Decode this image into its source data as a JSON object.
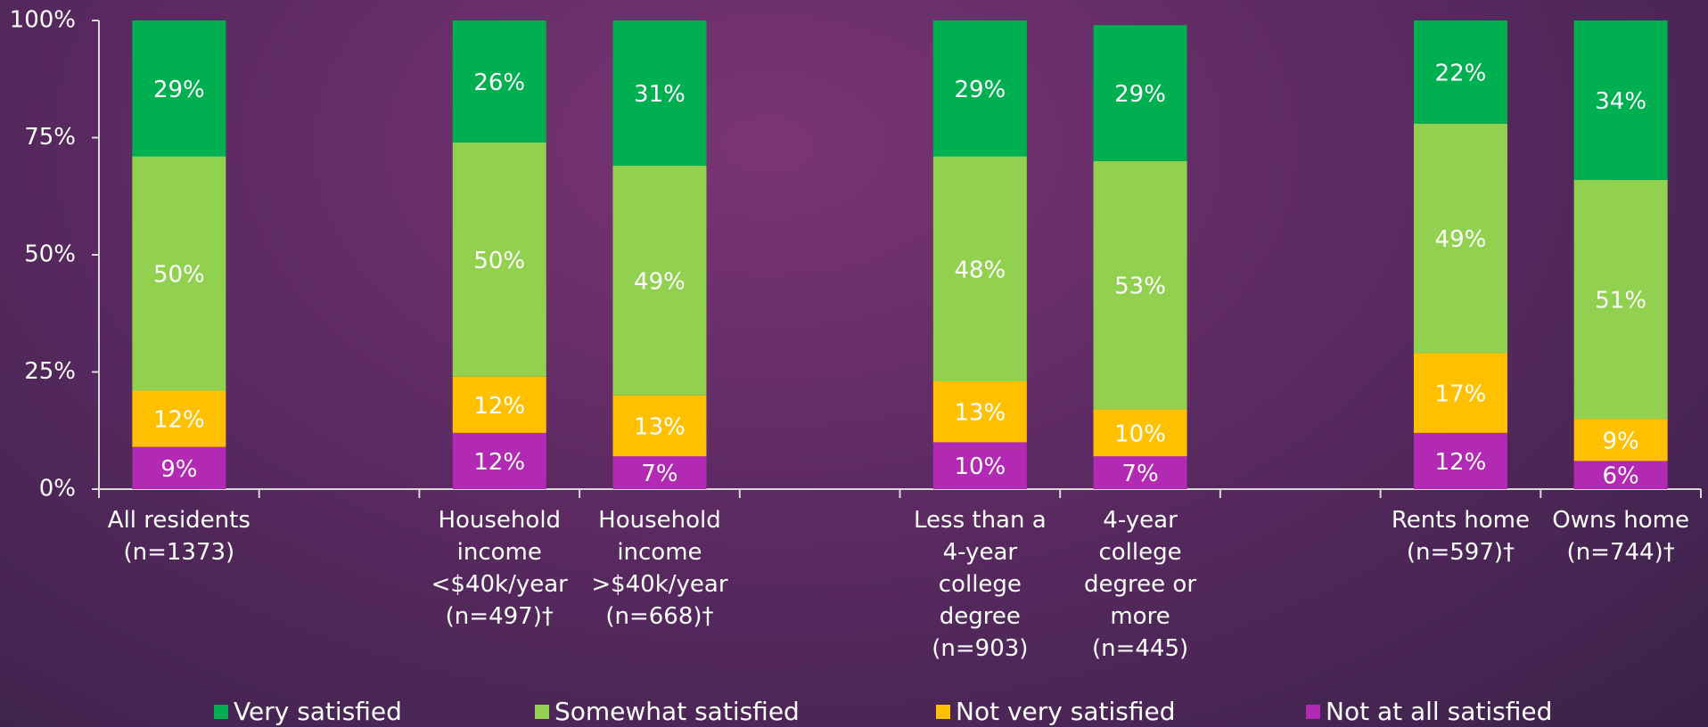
{
  "chart_data": {
    "type": "stacked_bar",
    "categories": [
      "All residents (n=1373)",
      null,
      "Household income <$40k/year (n=497)†",
      "Household income >$40k/year (n=668)†",
      null,
      "Less than a 4-year college degree (n=903)",
      "4-year college degree or more (n=445)",
      null,
      "Rents home (n=597)†",
      "Owns home (n=744)†"
    ],
    "series": [
      {
        "name": "Not at all satisfied",
        "color": "#b22ab4",
        "values": [
          9,
          null,
          12,
          7,
          null,
          10,
          7,
          null,
          12,
          6
        ],
        "value_labels": [
          "9%",
          null,
          "12%",
          "7%",
          null,
          "10%",
          "7%",
          null,
          "12%",
          "6%"
        ]
      },
      {
        "name": "Not very satisfied",
        "color": "#ffc000",
        "values": [
          12,
          null,
          12,
          13,
          null,
          13,
          10,
          null,
          17,
          9
        ],
        "value_labels": [
          "12%",
          null,
          "12%",
          "13%",
          null,
          "13%",
          "10%",
          null,
          "17%",
          "9%"
        ]
      },
      {
        "name": "Somewhat satisfied",
        "color": "#92d050",
        "values": [
          50,
          null,
          50,
          49,
          null,
          48,
          53,
          null,
          49,
          51
        ],
        "value_labels": [
          "50%",
          null,
          "50%",
          "49%",
          null,
          "48%",
          "53%",
          null,
          "49%",
          "51%"
        ]
      },
      {
        "name": "Very satisfied",
        "color": "#00b050",
        "values": [
          29,
          null,
          26,
          31,
          null,
          29,
          29,
          null,
          22,
          34
        ],
        "value_labels": [
          "29%",
          null,
          "26%",
          "31%",
          null,
          "29%",
          "29%",
          null,
          "22%",
          "34%"
        ]
      }
    ],
    "legend_order": [
      3,
      2,
      1,
      0
    ],
    "ylim": [
      0,
      100
    ],
    "yticks": [
      {
        "value": 0,
        "label": "0%"
      },
      {
        "value": 25,
        "label": "25%"
      },
      {
        "value": 50,
        "label": "50%"
      },
      {
        "value": 75,
        "label": "75%"
      },
      {
        "value": 100,
        "label": "100%"
      }
    ]
  }
}
